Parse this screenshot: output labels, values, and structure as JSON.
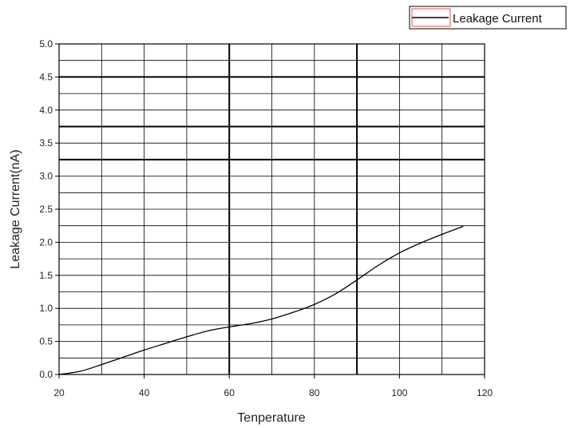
{
  "chart_data": {
    "type": "line",
    "title": "",
    "xlabel": "Tenperature",
    "ylabel": "Leakage Current(nA)",
    "xlim": [
      20,
      120
    ],
    "ylim": [
      0,
      5
    ],
    "x_ticks": [
      "20",
      "40",
      "60",
      "80",
      "100",
      "120"
    ],
    "y_ticks": [
      "0.0",
      "0.5",
      "1.0",
      "1.5",
      "2.0",
      "2.5",
      "3.0",
      "3.5",
      "4.0",
      "4.5",
      "5.0"
    ],
    "grid": true,
    "legend_position": "top-right",
    "series": [
      {
        "name": "Leakage Current",
        "color": "#000000",
        "x": [
          20,
          25,
          30,
          35,
          40,
          45,
          50,
          55,
          60,
          65,
          70,
          75,
          80,
          85,
          90,
          95,
          100,
          105,
          110,
          115
        ],
        "y": [
          0.0,
          0.05,
          0.15,
          0.26,
          0.37,
          0.47,
          0.57,
          0.66,
          0.72,
          0.77,
          0.84,
          0.94,
          1.06,
          1.22,
          1.43,
          1.65,
          1.84,
          1.99,
          2.12,
          2.24
        ]
      }
    ]
  }
}
